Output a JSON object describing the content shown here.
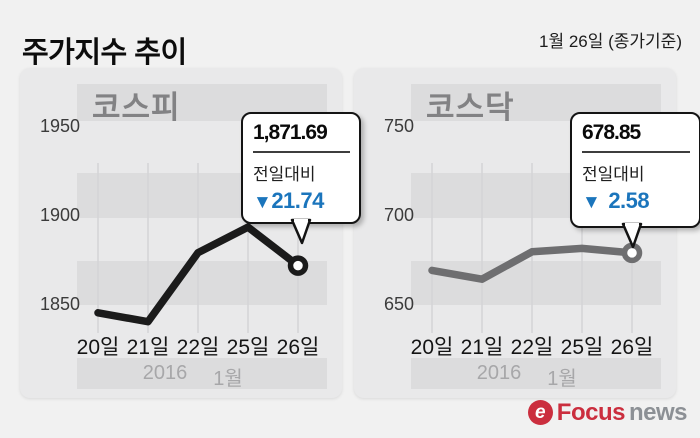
{
  "header": {
    "title": "주가지수 추이",
    "date_note": "1월 26일 (종가기준)"
  },
  "chart_data": [
    {
      "type": "line",
      "title": "코스피",
      "x": [
        "20일",
        "21일",
        "22일",
        "25일",
        "26일"
      ],
      "values": [
        1845,
        1840,
        1879,
        1893.43,
        1871.69
      ],
      "yticks": [
        1950,
        1900,
        1850
      ],
      "ylim": [
        1825,
        1975
      ],
      "grid": "horizontal-bands",
      "line_color": "#1b1b1b",
      "period": {
        "year": "2016",
        "month": "1월"
      },
      "annotation": {
        "value": "1,871.69",
        "label": "전일대비",
        "triangle": "▼",
        "change": "21.74",
        "direction": "down",
        "change_color": "#1b75bc"
      }
    },
    {
      "type": "line",
      "title": "코스닥",
      "x": [
        "20일",
        "21일",
        "22일",
        "25일",
        "26일"
      ],
      "values": [
        669,
        664,
        679.5,
        681.43,
        678.85
      ],
      "yticks": [
        750,
        700,
        650
      ],
      "ylim": [
        640,
        775
      ],
      "grid": "horizontal-bands",
      "line_color": "#6e6e70",
      "period": {
        "year": "2016",
        "month": "1월"
      },
      "annotation": {
        "value": "678.85",
        "label": "전일대비",
        "triangle": "▼",
        "change": "2.58",
        "direction": "down",
        "change_color": "#1b75bc"
      }
    }
  ],
  "brand": {
    "icon_letter": "e",
    "name_primary": "Focus",
    "name_secondary": "news",
    "primary_color": "#cb2e3e",
    "secondary_color": "#8c9095"
  }
}
